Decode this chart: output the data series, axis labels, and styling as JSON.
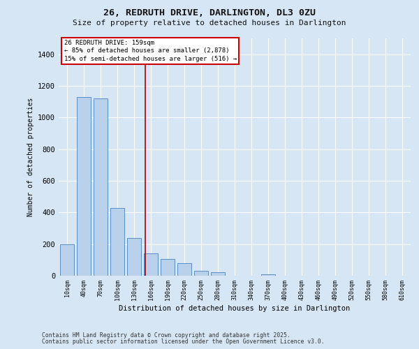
{
  "title_line1": "26, REDRUTH DRIVE, DARLINGTON, DL3 0ZU",
  "title_line2": "Size of property relative to detached houses in Darlington",
  "xlabel": "Distribution of detached houses by size in Darlington",
  "ylabel": "Number of detached properties",
  "categories": [
    "10sqm",
    "40sqm",
    "70sqm",
    "100sqm",
    "130sqm",
    "160sqm",
    "190sqm",
    "220sqm",
    "250sqm",
    "280sqm",
    "310sqm",
    "340sqm",
    "370sqm",
    "400sqm",
    "430sqm",
    "460sqm",
    "490sqm",
    "520sqm",
    "550sqm",
    "580sqm",
    "610sqm"
  ],
  "values": [
    200,
    1130,
    1120,
    430,
    240,
    140,
    105,
    80,
    30,
    20,
    0,
    0,
    10,
    0,
    0,
    0,
    0,
    0,
    0,
    0,
    0
  ],
  "bar_color": "#b8d0ea",
  "bar_edge_color": "#5b8fc9",
  "background_color": "#d6e6f5",
  "plot_bg_color": "#d6e6f5",
  "grid_color": "#ffffff",
  "ylim": [
    0,
    1500
  ],
  "yticks": [
    0,
    200,
    400,
    600,
    800,
    1000,
    1200,
    1400
  ],
  "vline_x_idx": 4.65,
  "vline_color": "#aa0000",
  "annotation_text": "26 REDRUTH DRIVE: 159sqm\n← 85% of detached houses are smaller (2,878)\n15% of semi-detached houses are larger (516) →",
  "annotation_box_facecolor": "#ffffff",
  "annotation_box_edgecolor": "#cc0000",
  "footnote1": "Contains HM Land Registry data © Crown copyright and database right 2025.",
  "footnote2": "Contains public sector information licensed under the Open Government Licence v3.0."
}
